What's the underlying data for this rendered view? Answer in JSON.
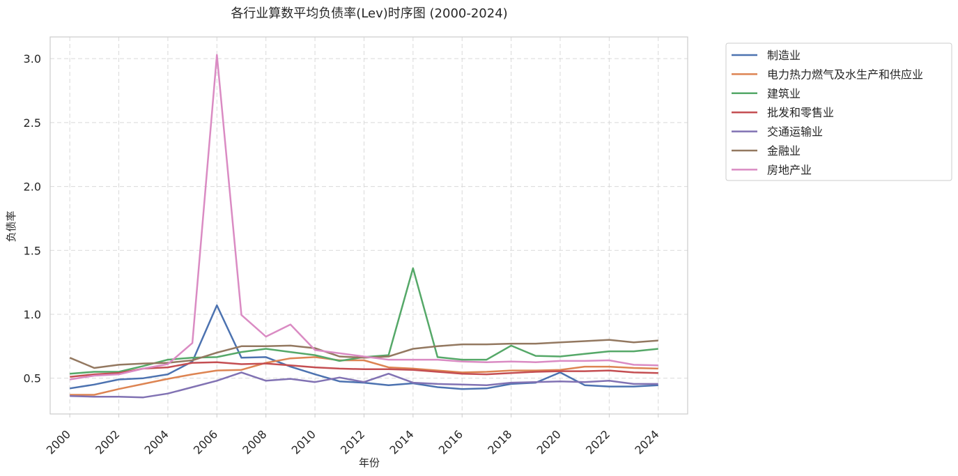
{
  "chart_data": {
    "type": "line",
    "title": "各行业算数平均负债率(Lev)时序图 (2000-2024)",
    "xlabel": "年份",
    "ylabel": "负债率",
    "xlim": [
      1999.2,
      2025.2
    ],
    "ylim": [
      0.22,
      3.17
    ],
    "grid": true,
    "legend_position": "outside-top-right",
    "x_ticks": [
      2000,
      2002,
      2004,
      2006,
      2008,
      2010,
      2012,
      2014,
      2016,
      2018,
      2020,
      2022,
      2024
    ],
    "x_tick_labels": [
      "2000",
      "2002",
      "2004",
      "2006",
      "2008",
      "2010",
      "2012",
      "2014",
      "2016",
      "2018",
      "2020",
      "2022",
      "2024"
    ],
    "y_ticks": [
      0.5,
      1.0,
      1.5,
      2.0,
      2.5,
      3.0
    ],
    "y_tick_labels": [
      "0.5",
      "1.0",
      "1.5",
      "2.0",
      "2.5",
      "3.0"
    ],
    "x": [
      2000,
      2001,
      2002,
      2003,
      2004,
      2005,
      2006,
      2007,
      2008,
      2009,
      2010,
      2011,
      2012,
      2013,
      2014,
      2015,
      2016,
      2017,
      2018,
      2019,
      2020,
      2021,
      2022,
      2023,
      2024
    ],
    "series": [
      {
        "name": "制造业",
        "color": "#4c72b0",
        "values": [
          0.42,
          0.45,
          0.49,
          0.5,
          0.53,
          0.63,
          1.07,
          0.66,
          0.665,
          0.59,
          0.53,
          0.475,
          0.465,
          0.445,
          0.46,
          0.43,
          0.415,
          0.42,
          0.455,
          0.465,
          0.545,
          0.445,
          0.435,
          0.435,
          0.445
        ]
      },
      {
        "name": "电力热力燃气及水生产和供应业",
        "color": "#dd8452",
        "values": [
          0.37,
          0.37,
          0.415,
          0.455,
          0.495,
          0.53,
          0.56,
          0.565,
          0.62,
          0.655,
          0.665,
          0.64,
          0.64,
          0.585,
          0.575,
          0.56,
          0.545,
          0.55,
          0.56,
          0.56,
          0.565,
          0.59,
          0.59,
          0.58,
          0.575
        ]
      },
      {
        "name": "建筑业",
        "color": "#55a868",
        "values": [
          0.535,
          0.55,
          0.55,
          0.595,
          0.645,
          0.66,
          0.665,
          0.705,
          0.73,
          0.705,
          0.68,
          0.635,
          0.665,
          0.68,
          1.36,
          0.665,
          0.645,
          0.645,
          0.755,
          0.675,
          0.67,
          0.69,
          0.71,
          0.71,
          0.73
        ]
      },
      {
        "name": "批发和零售业",
        "color": "#c44e52",
        "values": [
          0.51,
          0.53,
          0.54,
          0.575,
          0.585,
          0.62,
          0.625,
          0.61,
          0.615,
          0.6,
          0.585,
          0.575,
          0.57,
          0.57,
          0.565,
          0.55,
          0.535,
          0.53,
          0.54,
          0.55,
          0.555,
          0.555,
          0.56,
          0.545,
          0.54
        ]
      },
      {
        "name": "交通运输业",
        "color": "#8172b3",
        "values": [
          0.36,
          0.355,
          0.355,
          0.35,
          0.38,
          0.43,
          0.48,
          0.545,
          0.48,
          0.495,
          0.47,
          0.505,
          0.47,
          0.535,
          0.465,
          0.455,
          0.45,
          0.445,
          0.465,
          0.47,
          0.475,
          0.47,
          0.48,
          0.455,
          0.455
        ]
      },
      {
        "name": "金融业",
        "color": "#937860",
        "values": [
          0.66,
          0.58,
          0.605,
          0.615,
          0.62,
          0.64,
          0.7,
          0.75,
          0.75,
          0.755,
          0.735,
          0.67,
          0.66,
          0.67,
          0.73,
          0.75,
          0.765,
          0.765,
          0.77,
          0.77,
          0.78,
          0.79,
          0.8,
          0.78,
          0.795
        ]
      },
      {
        "name": "房地产业",
        "color": "#da8bc3",
        "values": [
          0.49,
          0.52,
          0.53,
          0.575,
          0.61,
          0.775,
          3.03,
          0.995,
          0.825,
          0.92,
          0.72,
          0.695,
          0.67,
          0.645,
          0.645,
          0.645,
          0.63,
          0.625,
          0.63,
          0.625,
          0.635,
          0.635,
          0.64,
          0.605,
          0.6
        ]
      }
    ]
  }
}
